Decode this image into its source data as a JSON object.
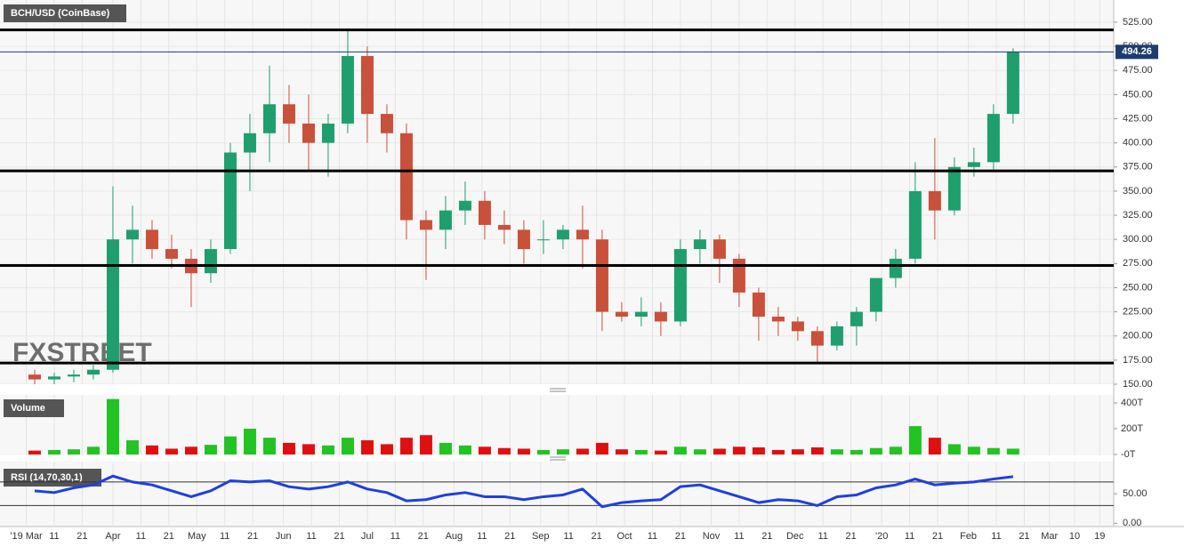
{
  "chart_data": [
    {
      "type": "candlestick",
      "title": "BCH/USD (CoinBase)",
      "watermark": "FXSTREET",
      "x": [
        3,
        10,
        17,
        24,
        31,
        38,
        45,
        52,
        59,
        66,
        73,
        80,
        87,
        94,
        101,
        108,
        115,
        122,
        129,
        136,
        143,
        150,
        157,
        164,
        171,
        178,
        185,
        192,
        199,
        206,
        213,
        220,
        227,
        234,
        241,
        248,
        255,
        262,
        269,
        276,
        283,
        290,
        297,
        304,
        311,
        318,
        325,
        332,
        339,
        346,
        353
      ],
      "open": [
        160,
        155,
        158,
        160,
        165,
        300,
        310,
        290,
        280,
        265,
        290,
        390,
        410,
        440,
        420,
        400,
        420,
        490,
        430,
        410,
        320,
        310,
        330,
        340,
        315,
        310,
        300,
        300,
        310,
        300,
        225,
        220,
        225,
        215,
        290,
        300,
        280,
        245,
        220,
        215,
        205,
        190,
        210,
        225,
        260,
        280,
        350,
        330,
        375,
        380,
        430
      ],
      "high": [
        165,
        162,
        165,
        170,
        355,
        335,
        320,
        305,
        290,
        300,
        400,
        430,
        480,
        460,
        450,
        430,
        517,
        500,
        440,
        420,
        330,
        345,
        360,
        350,
        330,
        320,
        320,
        315,
        335,
        310,
        235,
        240,
        235,
        300,
        310,
        305,
        285,
        250,
        230,
        220,
        210,
        215,
        230,
        260,
        290,
        380,
        405,
        385,
        395,
        440,
        498
      ],
      "low": [
        150,
        150,
        152,
        155,
        162,
        275,
        280,
        270,
        230,
        255,
        285,
        350,
        380,
        400,
        370,
        365,
        410,
        400,
        390,
        300,
        258,
        290,
        315,
        300,
        295,
        275,
        285,
        290,
        270,
        205,
        215,
        210,
        200,
        210,
        275,
        255,
        230,
        195,
        200,
        195,
        172,
        185,
        190,
        215,
        250,
        275,
        300,
        325,
        365,
        370,
        420
      ],
      "close": [
        155,
        158,
        160,
        165,
        300,
        310,
        290,
        280,
        265,
        290,
        390,
        410,
        440,
        420,
        400,
        420,
        490,
        430,
        410,
        320,
        310,
        330,
        340,
        315,
        310,
        290,
        300,
        310,
        300,
        225,
        220,
        225,
        215,
        290,
        300,
        280,
        245,
        220,
        215,
        205,
        190,
        210,
        225,
        260,
        280,
        350,
        330,
        375,
        380,
        430,
        494.26
      ],
      "up_color": "#1f9e6e",
      "down_color": "#c9503a",
      "xlim": [
        -9.4,
        389
      ],
      "ylim": [
        150,
        548
      ],
      "yticks": [
        {
          "value": 150,
          "label": "150.00"
        },
        {
          "value": 175,
          "label": "175.00"
        },
        {
          "value": 200,
          "label": "200.00"
        },
        {
          "value": 225,
          "label": "225.00"
        },
        {
          "value": 250,
          "label": "250.00"
        },
        {
          "value": 275,
          "label": "275.00"
        },
        {
          "value": 300,
          "label": "300.00"
        },
        {
          "value": 325,
          "label": "325.00"
        },
        {
          "value": 350,
          "label": "350.00"
        },
        {
          "value": 375,
          "label": "375.00"
        },
        {
          "value": 400,
          "label": "400.00"
        },
        {
          "value": 425,
          "label": "425.00"
        },
        {
          "value": 450,
          "label": "450.00"
        },
        {
          "value": 475,
          "label": "475.00"
        },
        {
          "value": 500,
          "label": "500.00"
        },
        {
          "value": 525,
          "label": "525.00"
        }
      ],
      "levels": [
        517,
        371,
        273,
        172
      ],
      "last_price": 494.26
    },
    {
      "type": "bar",
      "title": "Volume",
      "x": [
        3,
        10,
        17,
        24,
        31,
        38,
        45,
        52,
        59,
        66,
        73,
        80,
        87,
        94,
        101,
        108,
        115,
        122,
        129,
        136,
        143,
        150,
        157,
        164,
        171,
        178,
        185,
        192,
        199,
        206,
        213,
        220,
        227,
        234,
        241,
        248,
        255,
        262,
        269,
        276,
        283,
        290,
        297,
        304,
        311,
        318,
        325,
        332,
        339,
        346,
        353
      ],
      "values": [
        30,
        35,
        40,
        60,
        430,
        110,
        70,
        45,
        60,
        75,
        140,
        200,
        130,
        90,
        80,
        70,
        130,
        110,
        80,
        130,
        150,
        90,
        70,
        60,
        50,
        45,
        35,
        40,
        45,
        90,
        40,
        35,
        30,
        60,
        40,
        45,
        60,
        55,
        35,
        40,
        55,
        40,
        35,
        50,
        60,
        220,
        130,
        80,
        60,
        50,
        45
      ],
      "up_color": "#22c322",
      "down_color": "#e01010",
      "xlim": [
        -9.4,
        389
      ],
      "ylim": [
        -7,
        462
      ],
      "yticks": [
        {
          "value": 0,
          "label": "-0T"
        },
        {
          "value": 200,
          "label": "200T"
        },
        {
          "value": 400,
          "label": "400T"
        }
      ]
    },
    {
      "type": "line",
      "title": "RSI (14,70,30,1)",
      "color": "#1f3fe0",
      "x": [
        3,
        10,
        17,
        24,
        31,
        38,
        45,
        52,
        59,
        66,
        73,
        80,
        87,
        94,
        101,
        108,
        115,
        122,
        129,
        136,
        143,
        150,
        157,
        164,
        171,
        178,
        185,
        192,
        199,
        206,
        213,
        220,
        227,
        234,
        241,
        248,
        255,
        262,
        269,
        276,
        283,
        290,
        297,
        304,
        311,
        318,
        325,
        332,
        339,
        346,
        353
      ],
      "values": [
        55,
        52,
        60,
        65,
        80,
        70,
        65,
        55,
        45,
        55,
        72,
        70,
        72,
        62,
        58,
        62,
        70,
        58,
        52,
        38,
        40,
        48,
        52,
        45,
        45,
        40,
        45,
        48,
        58,
        28,
        35,
        38,
        40,
        62,
        65,
        55,
        45,
        35,
        40,
        38,
        30,
        45,
        48,
        60,
        65,
        75,
        65,
        68,
        70,
        75,
        79
      ],
      "xlim": [
        -9.4,
        389
      ],
      "ylim": [
        -5.6,
        104.5
      ],
      "yticks": [
        {
          "value": 0,
          "label": "0.00"
        },
        {
          "value": 50,
          "label": "50.00"
        }
      ],
      "levels": [
        70,
        30
      ],
      "xticks": [
        {
          "value": 0,
          "label": "'19 Mar"
        },
        {
          "value": 10,
          "label": "11"
        },
        {
          "value": 20,
          "label": "21"
        },
        {
          "value": 31,
          "label": "Apr"
        },
        {
          "value": 41,
          "label": "11"
        },
        {
          "value": 51,
          "label": "21"
        },
        {
          "value": 61,
          "label": "May"
        },
        {
          "value": 71,
          "label": "11"
        },
        {
          "value": 81,
          "label": "21"
        },
        {
          "value": 92,
          "label": "Jun"
        },
        {
          "value": 102,
          "label": "11"
        },
        {
          "value": 112,
          "label": "21"
        },
        {
          "value": 122,
          "label": "Jul"
        },
        {
          "value": 132,
          "label": "11"
        },
        {
          "value": 142,
          "label": "21"
        },
        {
          "value": 153,
          "label": "Aug"
        },
        {
          "value": 163,
          "label": "11"
        },
        {
          "value": 173,
          "label": "21"
        },
        {
          "value": 184,
          "label": "Sep"
        },
        {
          "value": 194,
          "label": "11"
        },
        {
          "value": 204,
          "label": "21"
        },
        {
          "value": 214,
          "label": "Oct"
        },
        {
          "value": 224,
          "label": "11"
        },
        {
          "value": 234,
          "label": "21"
        },
        {
          "value": 245,
          "label": "Nov"
        },
        {
          "value": 255,
          "label": "11"
        },
        {
          "value": 265,
          "label": "21"
        },
        {
          "value": 275,
          "label": "Dec"
        },
        {
          "value": 285,
          "label": "11"
        },
        {
          "value": 295,
          "label": "21"
        },
        {
          "value": 306,
          "label": "'20"
        },
        {
          "value": 316,
          "label": "11"
        },
        {
          "value": 326,
          "label": "21"
        },
        {
          "value": 337,
          "label": "Feb"
        },
        {
          "value": 347,
          "label": "11"
        },
        {
          "value": 357,
          "label": "21"
        },
        {
          "value": 366,
          "label": "Mar"
        },
        {
          "value": 375,
          "label": "10"
        },
        {
          "value": 384,
          "label": "19"
        }
      ]
    }
  ]
}
